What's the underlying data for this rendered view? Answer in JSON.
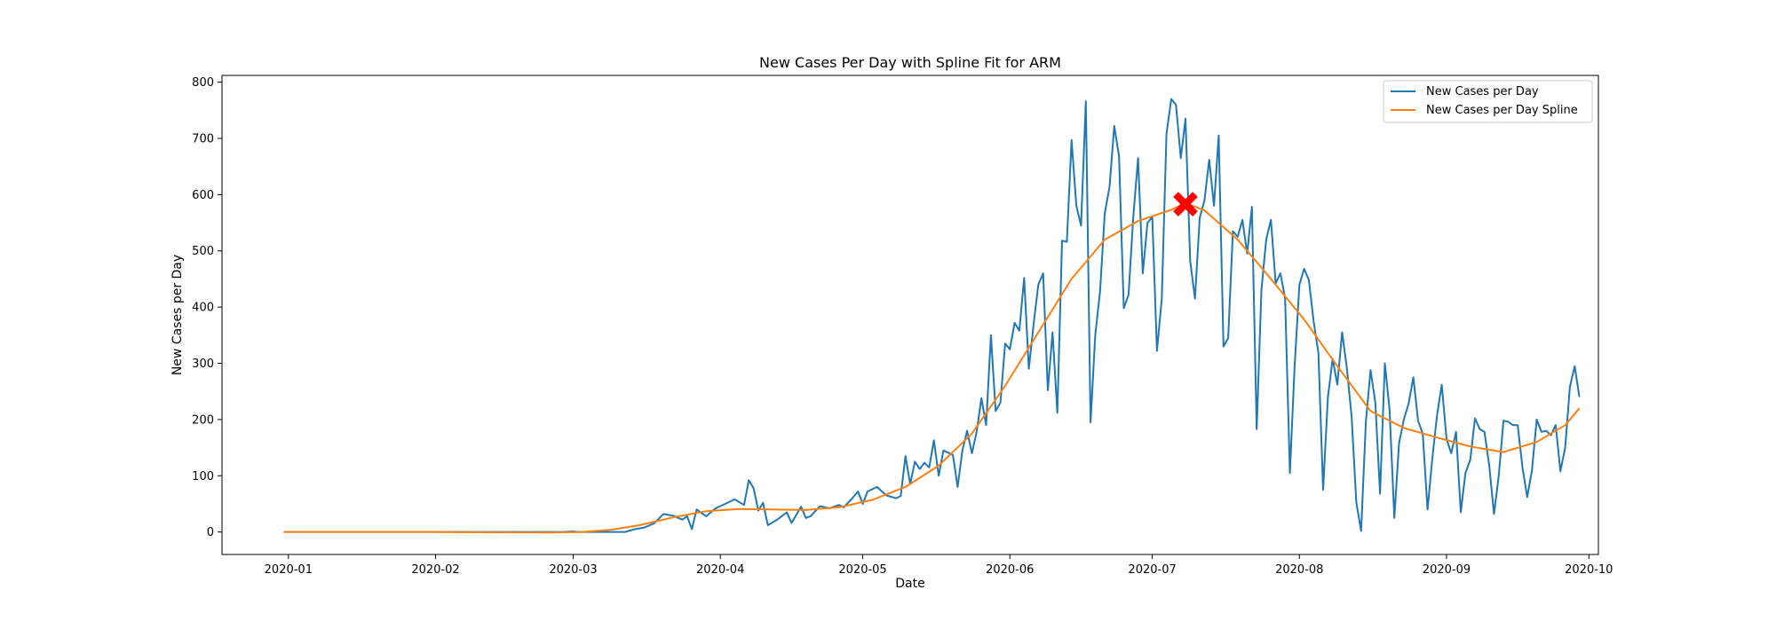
{
  "chart_data": {
    "type": "line",
    "title": "New Cases Per Day with Spline Fit for ARM",
    "xlabel": "Date",
    "ylabel": "New Cases per Day",
    "xlim": [
      "2019-12-18",
      "2020-10-03"
    ],
    "ylim": [
      -40,
      812
    ],
    "x_ticks": [
      "2020-01",
      "2020-02",
      "2020-03",
      "2020-04",
      "2020-05",
      "2020-06",
      "2020-07",
      "2020-08",
      "2020-09",
      "2020-10"
    ],
    "y_ticks": [
      0,
      100,
      200,
      300,
      400,
      500,
      600,
      700,
      800
    ],
    "grid": false,
    "legend": "top-right",
    "colors": {
      "raw": "#1f77b4",
      "spline": "#ff7f0e",
      "marker": "#ff0000"
    },
    "series": [
      {
        "name": "New Cases per Day",
        "points": [
          [
            "2019-12-31",
            0
          ],
          [
            "2020-02-28",
            0
          ],
          [
            "2020-03-01",
            1
          ],
          [
            "2020-03-02",
            0
          ],
          [
            "2020-03-12",
            0
          ],
          [
            "2020-03-14",
            5
          ],
          [
            "2020-03-16",
            8
          ],
          [
            "2020-03-18",
            15
          ],
          [
            "2020-03-20",
            32
          ],
          [
            "2020-03-22",
            29
          ],
          [
            "2020-03-24",
            22
          ],
          [
            "2020-03-25",
            28
          ],
          [
            "2020-03-26",
            5
          ],
          [
            "2020-03-27",
            40
          ],
          [
            "2020-03-29",
            28
          ],
          [
            "2020-03-31",
            42
          ],
          [
            "2020-04-02",
            50
          ],
          [
            "2020-04-04",
            58
          ],
          [
            "2020-04-06",
            48
          ],
          [
            "2020-04-07",
            92
          ],
          [
            "2020-04-08",
            78
          ],
          [
            "2020-04-09",
            38
          ],
          [
            "2020-04-10",
            52
          ],
          [
            "2020-04-11",
            12
          ],
          [
            "2020-04-13",
            22
          ],
          [
            "2020-04-15",
            35
          ],
          [
            "2020-04-16",
            16
          ],
          [
            "2020-04-18",
            45
          ],
          [
            "2020-04-19",
            25
          ],
          [
            "2020-04-20",
            28
          ],
          [
            "2020-04-22",
            46
          ],
          [
            "2020-04-24",
            42
          ],
          [
            "2020-04-26",
            48
          ],
          [
            "2020-04-27",
            44
          ],
          [
            "2020-04-29",
            62
          ],
          [
            "2020-04-30",
            72
          ],
          [
            "2020-05-01",
            50
          ],
          [
            "2020-05-02",
            72
          ],
          [
            "2020-05-04",
            80
          ],
          [
            "2020-05-06",
            65
          ],
          [
            "2020-05-08",
            60
          ],
          [
            "2020-05-09",
            64
          ],
          [
            "2020-05-10",
            135
          ],
          [
            "2020-05-11",
            85
          ],
          [
            "2020-05-12",
            125
          ],
          [
            "2020-05-13",
            112
          ],
          [
            "2020-05-14",
            123
          ],
          [
            "2020-05-15",
            115
          ],
          [
            "2020-05-16",
            163
          ],
          [
            "2020-05-17",
            100
          ],
          [
            "2020-05-18",
            145
          ],
          [
            "2020-05-20",
            137
          ],
          [
            "2020-05-21",
            80
          ],
          [
            "2020-05-22",
            145
          ],
          [
            "2020-05-23",
            180
          ],
          [
            "2020-05-24",
            140
          ],
          [
            "2020-05-25",
            178
          ],
          [
            "2020-05-26",
            238
          ],
          [
            "2020-05-27",
            190
          ],
          [
            "2020-05-28",
            350
          ],
          [
            "2020-05-29",
            215
          ],
          [
            "2020-05-30",
            230
          ],
          [
            "2020-05-31",
            335
          ],
          [
            "2020-06-01",
            325
          ],
          [
            "2020-06-02",
            372
          ],
          [
            "2020-06-03",
            358
          ],
          [
            "2020-06-04",
            452
          ],
          [
            "2020-06-05",
            290
          ],
          [
            "2020-06-06",
            370
          ],
          [
            "2020-06-07",
            440
          ],
          [
            "2020-06-08",
            460
          ],
          [
            "2020-06-09",
            252
          ],
          [
            "2020-06-10",
            355
          ],
          [
            "2020-06-11",
            212
          ],
          [
            "2020-06-12",
            518
          ],
          [
            "2020-06-13",
            516
          ],
          [
            "2020-06-14",
            697
          ],
          [
            "2020-06-15",
            580
          ],
          [
            "2020-06-16",
            545
          ],
          [
            "2020-06-17",
            766
          ],
          [
            "2020-06-18",
            195
          ],
          [
            "2020-06-19",
            350
          ],
          [
            "2020-06-20",
            428
          ],
          [
            "2020-06-21",
            567
          ],
          [
            "2020-06-22",
            614
          ],
          [
            "2020-06-23",
            722
          ],
          [
            "2020-06-24",
            668
          ],
          [
            "2020-06-25",
            398
          ],
          [
            "2020-06-26",
            422
          ],
          [
            "2020-06-27",
            560
          ],
          [
            "2020-06-28",
            665
          ],
          [
            "2020-06-29",
            460
          ],
          [
            "2020-06-30",
            550
          ],
          [
            "2020-07-01",
            560
          ],
          [
            "2020-07-02",
            322
          ],
          [
            "2020-07-03",
            415
          ],
          [
            "2020-07-04",
            708
          ],
          [
            "2020-07-05",
            770
          ],
          [
            "2020-07-06",
            760
          ],
          [
            "2020-07-07",
            665
          ],
          [
            "2020-07-08",
            735
          ],
          [
            "2020-07-09",
            482
          ],
          [
            "2020-07-10",
            415
          ],
          [
            "2020-07-11",
            558
          ],
          [
            "2020-07-12",
            590
          ],
          [
            "2020-07-13",
            662
          ],
          [
            "2020-07-14",
            580
          ],
          [
            "2020-07-15",
            705
          ],
          [
            "2020-07-16",
            330
          ],
          [
            "2020-07-17",
            345
          ],
          [
            "2020-07-18",
            535
          ],
          [
            "2020-07-19",
            525
          ],
          [
            "2020-07-20",
            555
          ],
          [
            "2020-07-21",
            495
          ],
          [
            "2020-07-22",
            578
          ],
          [
            "2020-07-23",
            183
          ],
          [
            "2020-07-24",
            430
          ],
          [
            "2020-07-25",
            520
          ],
          [
            "2020-07-26",
            555
          ],
          [
            "2020-07-27",
            442
          ],
          [
            "2020-07-28",
            460
          ],
          [
            "2020-07-29",
            415
          ],
          [
            "2020-07-30",
            105
          ],
          [
            "2020-07-31",
            295
          ],
          [
            "2020-08-01",
            440
          ],
          [
            "2020-08-02",
            468
          ],
          [
            "2020-08-03",
            448
          ],
          [
            "2020-08-04",
            375
          ],
          [
            "2020-08-05",
            318
          ],
          [
            "2020-08-06",
            75
          ],
          [
            "2020-08-07",
            238
          ],
          [
            "2020-08-08",
            308
          ],
          [
            "2020-08-09",
            262
          ],
          [
            "2020-08-10",
            355
          ],
          [
            "2020-08-11",
            292
          ],
          [
            "2020-08-12",
            205
          ],
          [
            "2020-08-13",
            52
          ],
          [
            "2020-08-14",
            2
          ],
          [
            "2020-08-15",
            195
          ],
          [
            "2020-08-16",
            288
          ],
          [
            "2020-08-17",
            230
          ],
          [
            "2020-08-18",
            68
          ],
          [
            "2020-08-19",
            300
          ],
          [
            "2020-08-20",
            218
          ],
          [
            "2020-08-21",
            25
          ],
          [
            "2020-08-22",
            158
          ],
          [
            "2020-08-23",
            200
          ],
          [
            "2020-08-24",
            228
          ],
          [
            "2020-08-25",
            275
          ],
          [
            "2020-08-26",
            198
          ],
          [
            "2020-08-27",
            175
          ],
          [
            "2020-08-28",
            40
          ],
          [
            "2020-08-29",
            130
          ],
          [
            "2020-08-30",
            208
          ],
          [
            "2020-08-31",
            262
          ],
          [
            "2020-09-01",
            165
          ],
          [
            "2020-09-02",
            140
          ],
          [
            "2020-09-03",
            178
          ],
          [
            "2020-09-04",
            35
          ],
          [
            "2020-09-05",
            105
          ],
          [
            "2020-09-06",
            128
          ],
          [
            "2020-09-07",
            202
          ],
          [
            "2020-09-08",
            183
          ],
          [
            "2020-09-09",
            178
          ],
          [
            "2020-09-10",
            118
          ],
          [
            "2020-09-11",
            32
          ],
          [
            "2020-09-12",
            100
          ],
          [
            "2020-09-13",
            198
          ],
          [
            "2020-09-14",
            196
          ],
          [
            "2020-09-15",
            190
          ],
          [
            "2020-09-16",
            190
          ],
          [
            "2020-09-17",
            115
          ],
          [
            "2020-09-18",
            62
          ],
          [
            "2020-09-19",
            110
          ],
          [
            "2020-09-20",
            200
          ],
          [
            "2020-09-21",
            178
          ],
          [
            "2020-09-22",
            180
          ],
          [
            "2020-09-23",
            172
          ],
          [
            "2020-09-24",
            190
          ],
          [
            "2020-09-25",
            108
          ],
          [
            "2020-09-26",
            150
          ],
          [
            "2020-09-27",
            258
          ],
          [
            "2020-09-28",
            295
          ],
          [
            "2020-09-29",
            240
          ]
        ]
      },
      {
        "name": "New Cases per Day Spline",
        "points": [
          [
            "2019-12-31",
            0
          ],
          [
            "2020-02-01",
            0
          ],
          [
            "2020-02-25",
            -1
          ],
          [
            "2020-03-03",
            0
          ],
          [
            "2020-03-09",
            4
          ],
          [
            "2020-03-15",
            12
          ],
          [
            "2020-03-22",
            26
          ],
          [
            "2020-03-29",
            37
          ],
          [
            "2020-04-05",
            41
          ],
          [
            "2020-04-12",
            40
          ],
          [
            "2020-04-19",
            39
          ],
          [
            "2020-04-26",
            44
          ],
          [
            "2020-05-03",
            57
          ],
          [
            "2020-05-10",
            80
          ],
          [
            "2020-05-17",
            118
          ],
          [
            "2020-05-24",
            175
          ],
          [
            "2020-05-31",
            260
          ],
          [
            "2020-06-07",
            355
          ],
          [
            "2020-06-14",
            450
          ],
          [
            "2020-06-21",
            520
          ],
          [
            "2020-06-28",
            553
          ],
          [
            "2020-07-05",
            573
          ],
          [
            "2020-07-08",
            585
          ],
          [
            "2020-07-12",
            572
          ],
          [
            "2020-07-19",
            520
          ],
          [
            "2020-07-26",
            450
          ],
          [
            "2020-08-02",
            378
          ],
          [
            "2020-08-09",
            295
          ],
          [
            "2020-08-16",
            215
          ],
          [
            "2020-08-23",
            185
          ],
          [
            "2020-08-30",
            168
          ],
          [
            "2020-09-06",
            152
          ],
          [
            "2020-09-13",
            142
          ],
          [
            "2020-09-20",
            160
          ],
          [
            "2020-09-26",
            190
          ],
          [
            "2020-09-29",
            220
          ]
        ]
      }
    ],
    "annotations": [
      {
        "type": "marker",
        "shape": "x",
        "date": "2020-07-08",
        "value": 583
      }
    ]
  }
}
